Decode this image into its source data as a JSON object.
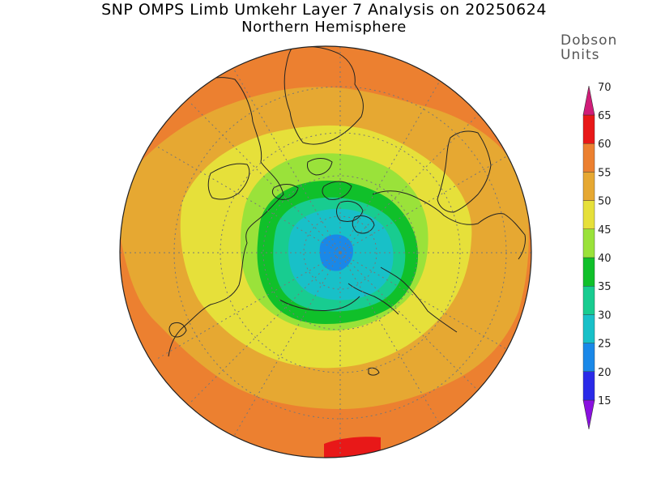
{
  "title": "SNP OMPS Limb Umkehr Layer 7 Analysis on 20250624",
  "subtitle": "Northern Hemisphere",
  "colorbar": {
    "units_line1": "Dobson",
    "units_line2": "Units",
    "labels": [
      "15",
      "20",
      "25",
      "30",
      "35",
      "40",
      "45",
      "50",
      "55",
      "60",
      "65",
      "70"
    ],
    "colors": [
      "#8a10e0",
      "#2a2ae8",
      "#1a88e8",
      "#18c0c8",
      "#18cc90",
      "#10c02a",
      "#9ae23a",
      "#e6e03a",
      "#e6a832",
      "#ec8030",
      "#e81818",
      "#d01c78"
    ]
  },
  "map": {
    "projection": "north-polar-stereographic",
    "fill_colors": {
      "orange": "#ec8030",
      "amber": "#e6a832",
      "yellow": "#e6e03a",
      "lightgreen": "#9ae23a",
      "green": "#10c02a",
      "teal": "#18cc90",
      "cyan": "#18c0c8",
      "blue": "#1a88e8",
      "red": "#e81818"
    }
  }
}
